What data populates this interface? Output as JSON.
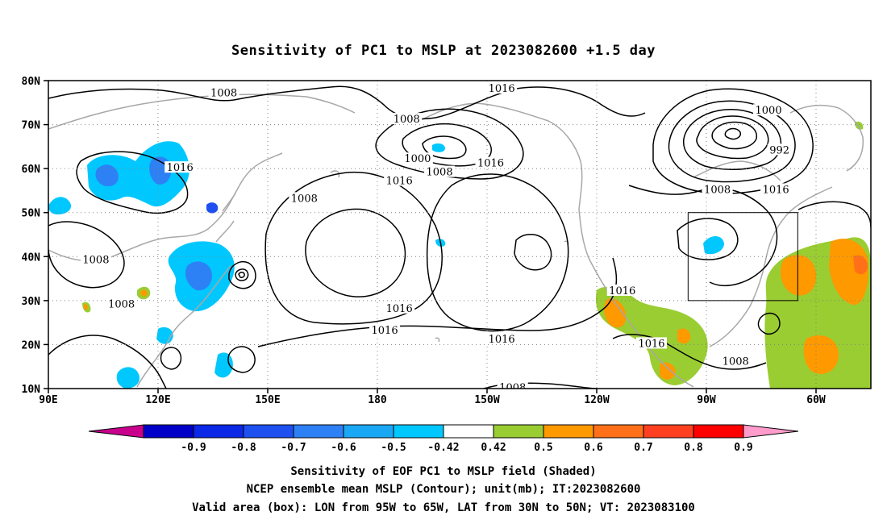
{
  "title": "Sensitivity of PC1 to MSLP at 2023082600 +1.5 day",
  "lat_labels": [
    "80N",
    "70N",
    "60N",
    "50N",
    "40N",
    "30N",
    "20N",
    "10N"
  ],
  "lon_labels": [
    "90E",
    "120E",
    "150E",
    "180",
    "150W",
    "120W",
    "90W",
    "60W"
  ],
  "contour_labels": [
    {
      "text": "1008",
      "lon": 138,
      "lat": 77
    },
    {
      "text": "1016",
      "lon": -146,
      "lat": 78
    },
    {
      "text": "1008",
      "lon": -172,
      "lat": 71
    },
    {
      "text": "1000",
      "lon": -73,
      "lat": 73
    },
    {
      "text": "1000",
      "lon": -169,
      "lat": 62
    },
    {
      "text": "1008",
      "lon": -163,
      "lat": 59
    },
    {
      "text": "1016",
      "lon": -149,
      "lat": 61
    },
    {
      "text": "992",
      "lon": -70,
      "lat": 64
    },
    {
      "text": "1016",
      "lon": 126,
      "lat": 60
    },
    {
      "text": "1016",
      "lon": 186,
      "lat": 57
    },
    {
      "text": "1008",
      "lon": 160,
      "lat": 53
    },
    {
      "text": "1008",
      "lon": -87,
      "lat": 55
    },
    {
      "text": "1016",
      "lon": -71,
      "lat": 55
    },
    {
      "text": "1008",
      "lon": 103,
      "lat": 39
    },
    {
      "text": "1016",
      "lon": -113,
      "lat": 32
    },
    {
      "text": "1008",
      "lon": 110,
      "lat": 29
    },
    {
      "text": "1016",
      "lon": 186,
      "lat": 28
    },
    {
      "text": "1016",
      "lon": 182,
      "lat": 23
    },
    {
      "text": "1016",
      "lon": -146,
      "lat": 21
    },
    {
      "text": "1016",
      "lon": -105,
      "lat": 20
    },
    {
      "text": "1008",
      "lon": -82,
      "lat": 16
    },
    {
      "text": "1008",
      "lon": -143,
      "lat": 10
    }
  ],
  "valid_box": {
    "lon_min": -95,
    "lon_max": -65,
    "lat_min": 30,
    "lat_max": 50
  },
  "colorbar": {
    "labels": [
      "-0.9",
      "-0.8",
      "-0.7",
      "-0.6",
      "-0.5",
      "-0.42",
      "0.42",
      "0.5",
      "0.6",
      "0.7",
      "0.8",
      "0.9"
    ],
    "colors": [
      "#0000c8",
      "#0a28e6",
      "#1e50f0",
      "#2e80f5",
      "#1aa8f5",
      "#00c8ff",
      "#ffffff",
      "#9acd32",
      "#ff9900",
      "#ff7018",
      "#ff4020",
      "#ff0000"
    ],
    "low_color": "#c8008c",
    "high_color": "#ff9ccc"
  },
  "captions": [
    "Sensitivity of EOF PC1 to MSLP field (Shaded)",
    "NCEP ensemble mean MSLP (Contour); unit(mb); IT:2023082600",
    "Valid area (box): LON from 95W to 65W, LAT from 30N to 50N; VT: 2023083100"
  ]
}
